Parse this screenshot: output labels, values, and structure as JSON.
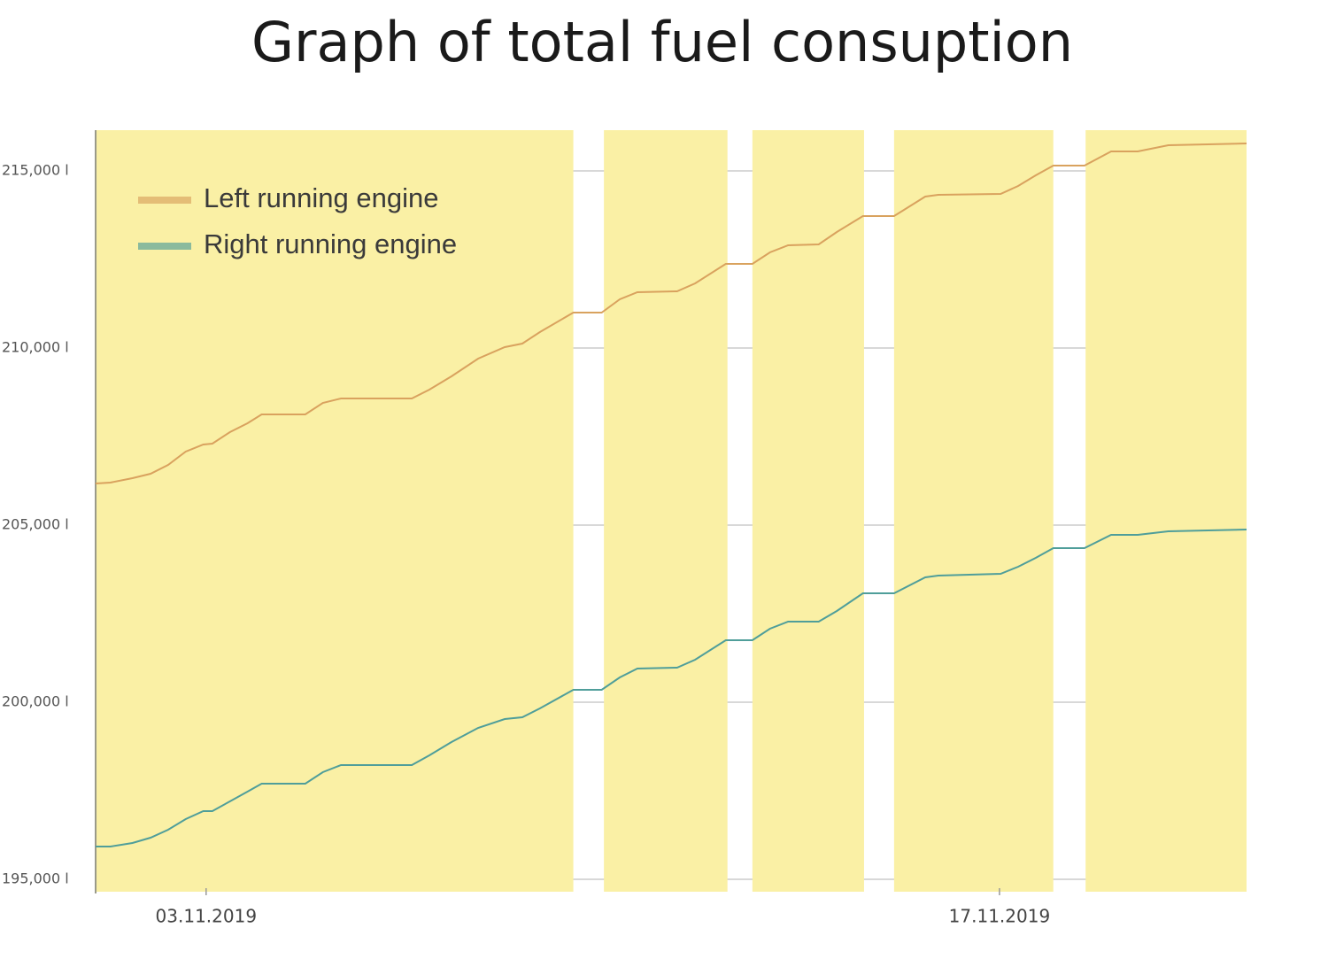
{
  "chart_data": {
    "type": "line",
    "title": "Graph of total fuel consuption",
    "x": [
      1.05,
      1.31,
      1.7,
      2.02,
      2.33,
      2.64,
      2.95,
      3.11,
      3.42,
      3.73,
      3.98,
      4.75,
      5.06,
      5.38,
      6.63,
      6.94,
      7.33,
      7.8,
      8.27,
      8.58,
      8.89,
      9.48,
      9.98,
      10.3,
      10.61,
      11.31,
      11.63,
      12.17,
      12.64,
      12.95,
      13.27,
      13.81,
      14.13,
      14.59,
      15.14,
      15.69,
      15.92,
      17.02,
      17.33,
      17.64,
      17.95,
      18.5,
      18.97,
      19.44,
      19.98,
      21.36
    ],
    "series": [
      {
        "name": "Left running engine",
        "color": "#d9a25e",
        "values": [
          206175,
          206200,
          206325,
          206450,
          206700,
          207075,
          207275,
          207300,
          207625,
          207875,
          208125,
          208125,
          208450,
          208575,
          208575,
          208825,
          209200,
          209700,
          210025,
          210125,
          210450,
          211000,
          211000,
          211375,
          211575,
          211600,
          211825,
          212375,
          212375,
          212700,
          212900,
          212925,
          213275,
          213725,
          213725,
          214275,
          214325,
          214350,
          214575,
          214875,
          215150,
          215150,
          215550,
          215550,
          215725,
          215775
        ]
      },
      {
        "name": "Right running engine",
        "color": "#4f9e9a",
        "values": [
          195925,
          195925,
          196025,
          196175,
          196400,
          196700,
          196925,
          196925,
          197200,
          197475,
          197700,
          197700,
          198025,
          198225,
          198225,
          198500,
          198875,
          199275,
          199525,
          199575,
          199825,
          200350,
          200350,
          200700,
          200950,
          200975,
          201200,
          201750,
          201750,
          202075,
          202275,
          202275,
          202575,
          203075,
          203075,
          203525,
          203575,
          203625,
          203825,
          204075,
          204350,
          204350,
          204725,
          204725,
          204825,
          204875
        ]
      }
    ],
    "xlim": [
      1.05,
      21.36
    ],
    "xticks": [
      {
        "value": 3,
        "label": "03.11.2019"
      },
      {
        "value": 17,
        "label": "17.11.2019"
      }
    ],
    "ylim": [
      194650,
      216150
    ],
    "yticks": [
      {
        "value": 195000,
        "label": "195,000 l"
      },
      {
        "value": 200000,
        "label": "200,000 l"
      },
      {
        "value": 205000,
        "label": "205,000 l"
      },
      {
        "value": 210000,
        "label": "210,000 l"
      },
      {
        "value": 215000,
        "label": "215,000 l"
      }
    ],
    "shaded_spans": [
      [
        1.05,
        9.48
      ],
      [
        10.02,
        12.2
      ],
      [
        12.64,
        14.61
      ],
      [
        15.14,
        17.95
      ],
      [
        18.52,
        21.36
      ]
    ],
    "shade_color": "#faf0a5",
    "grid": true,
    "legend": "upper-left"
  }
}
